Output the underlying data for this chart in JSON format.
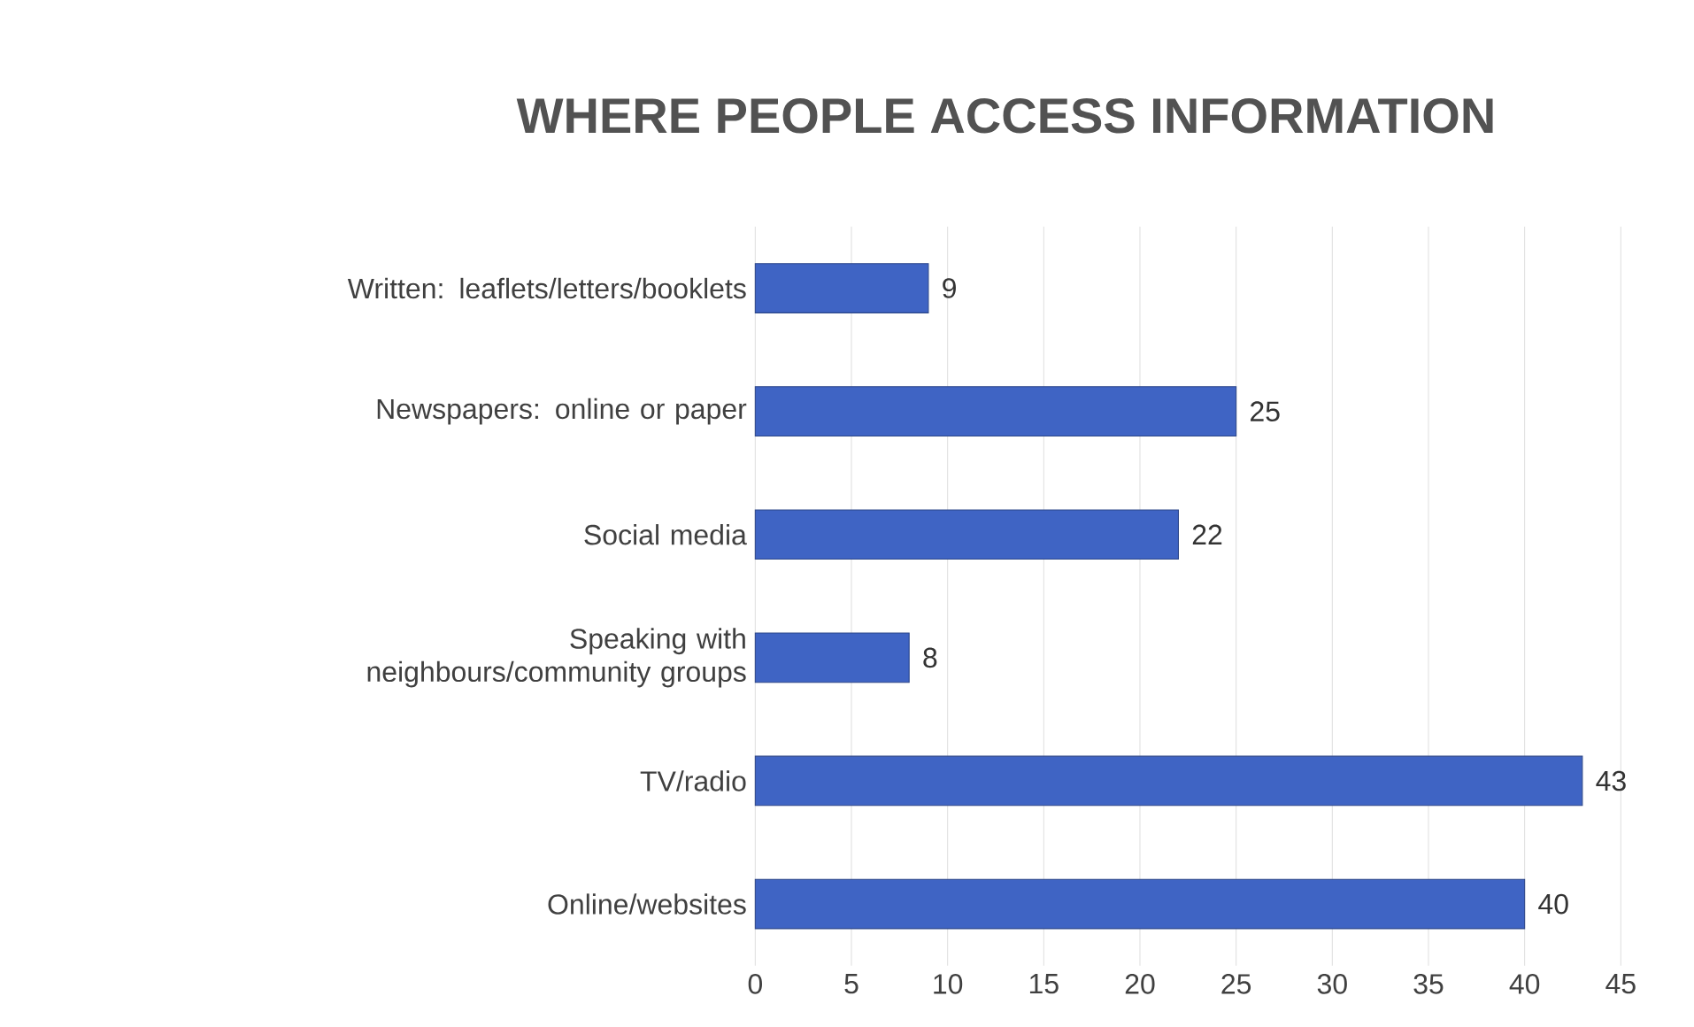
{
  "chart_data": {
    "type": "bar",
    "orientation": "horizontal",
    "title": "WHERE PEOPLE ACCESS INFORMATION",
    "categories": [
      "Written: leaflets/letters/booklets",
      "Newspapers: online or paper",
      "Social media",
      "Speaking with neighbours/community groups",
      "TV/radio",
      "Online/websites"
    ],
    "values": [
      9,
      25,
      22,
      8,
      43,
      40
    ],
    "color": "#3f64c4",
    "xlim": [
      0,
      45
    ],
    "xticks": [
      0,
      5,
      10,
      15,
      20,
      25,
      30,
      35,
      40,
      45
    ],
    "grid": "x",
    "data_labels": true
  }
}
